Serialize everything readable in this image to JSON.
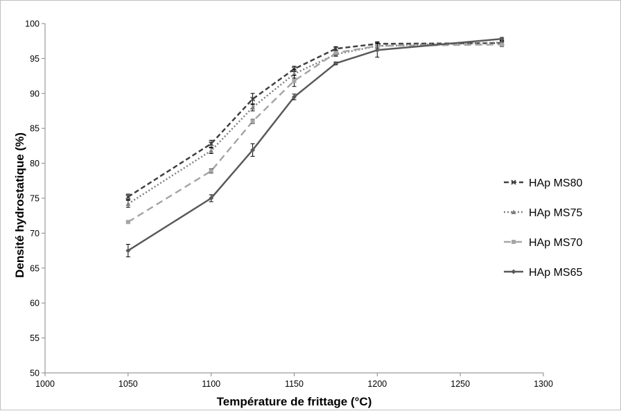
{
  "chart_data": {
    "type": "line",
    "title": "",
    "xlabel": "Température de frittage (°C)",
    "ylabel": "Densité hydrostatique (%)",
    "xlim": [
      1000,
      1300
    ],
    "ylim": [
      50,
      100
    ],
    "xticks": [
      1000,
      1050,
      1100,
      1150,
      1200,
      1250,
      1300
    ],
    "yticks": [
      50,
      55,
      60,
      65,
      70,
      75,
      80,
      85,
      90,
      95,
      100
    ],
    "grid": false,
    "legend_position": "right",
    "series": [
      {
        "name": "HAp MS80",
        "color": "#404040",
        "dash": "dash",
        "marker": "cross",
        "x": [
          1050,
          1100,
          1125,
          1150,
          1175,
          1200,
          1275
        ],
        "y": [
          75.2,
          82.8,
          89.2,
          93.5,
          96.4,
          97.1,
          97.2
        ],
        "error": [
          0.4,
          0.5,
          0.8,
          0.4,
          0.3,
          0.3,
          0.3
        ]
      },
      {
        "name": "HAp MS75",
        "color": "#7f7f7f",
        "dash": "dot",
        "marker": "triangle",
        "x": [
          1050,
          1100,
          1125,
          1150,
          1175,
          1200,
          1275
        ],
        "y": [
          74.2,
          81.8,
          88.0,
          92.8,
          95.6,
          96.8,
          97.3
        ],
        "error": [
          0.5,
          0.4,
          0.5,
          0.6,
          0.3,
          0.3,
          0.3
        ]
      },
      {
        "name": "HAp MS70",
        "color": "#a6a6a6",
        "dash": "longdash",
        "marker": "square",
        "x": [
          1050,
          1100,
          1125,
          1150,
          1175,
          1200,
          1275
        ],
        "y": [
          71.6,
          78.9,
          86.0,
          91.8,
          95.8,
          96.8,
          97.0
        ],
        "error": [
          0.2,
          0.3,
          0.3,
          0.8,
          0.3,
          0.3,
          0.3
        ]
      },
      {
        "name": "HAp MS65",
        "color": "#595959",
        "dash": "solid",
        "marker": "diamond",
        "x": [
          1050,
          1100,
          1125,
          1150,
          1175,
          1200,
          1275
        ],
        "y": [
          67.5,
          75.0,
          81.9,
          89.5,
          94.3,
          96.2,
          97.8
        ],
        "error": [
          0.9,
          0.5,
          0.9,
          0.4,
          0.2,
          1.0,
          0.2
        ]
      }
    ]
  }
}
